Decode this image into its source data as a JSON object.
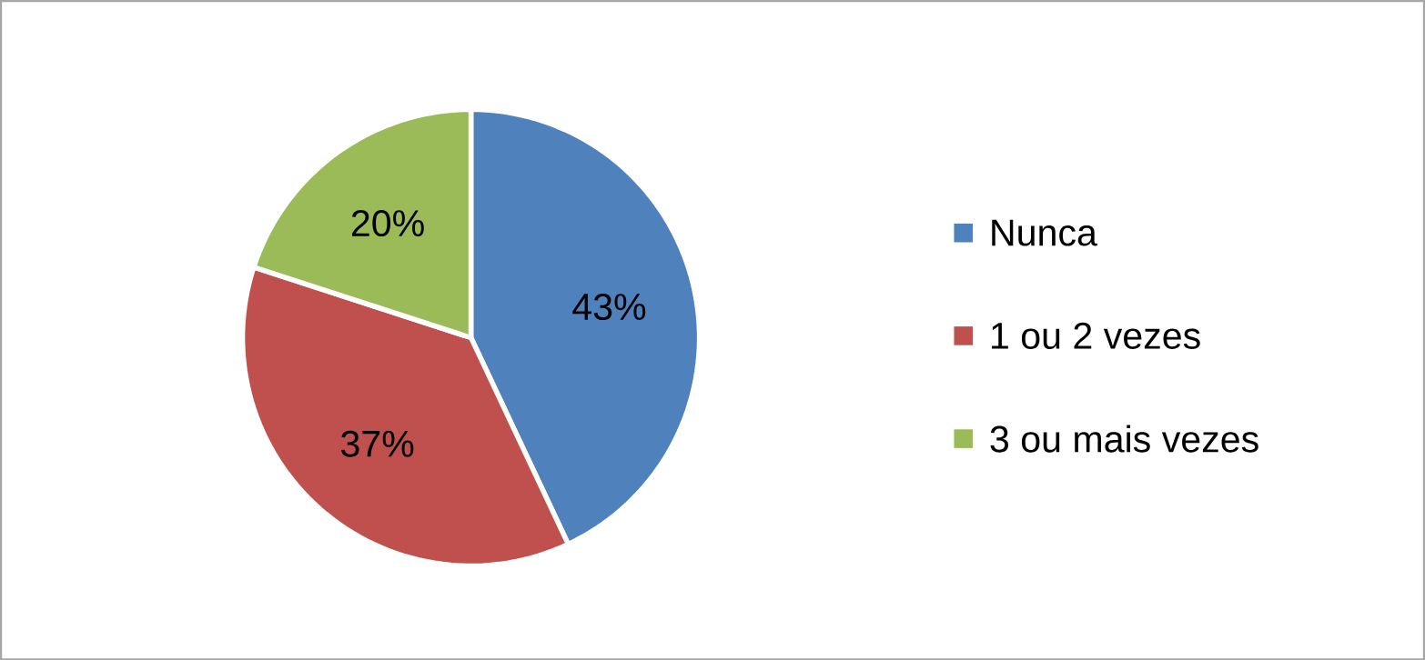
{
  "chart_data": {
    "type": "pie",
    "categories": [
      "Nunca",
      "1 ou 2 vezes",
      "3 ou mais vezes"
    ],
    "values": [
      43,
      37,
      20
    ],
    "colors": [
      "#4f81bd",
      "#c0504d",
      "#9bbb59"
    ],
    "value_labels": [
      "43%",
      "37%",
      "20%"
    ],
    "legend": "right"
  }
}
